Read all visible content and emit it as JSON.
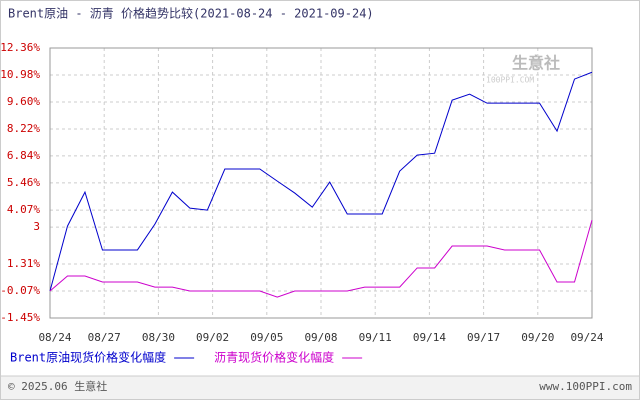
{
  "chart_data": {
    "type": "line",
    "title": "Brent原油 - 沥青 价格趋势比较(2021-08-24 - 2021-09-24)",
    "xlabels": [
      "08/24",
      "08/27",
      "08/30",
      "09/02",
      "09/05",
      "09/08",
      "09/11",
      "09/14",
      "09/17",
      "09/20",
      "09/24"
    ],
    "ylim": [
      -1.45,
      12.36
    ],
    "yticks": [
      {
        "value": 12.36,
        "label": "12.36%"
      },
      {
        "value": 10.98,
        "label": "10.98%"
      },
      {
        "value": 9.6,
        "label": "9.60%"
      },
      {
        "value": 8.22,
        "label": "8.22%"
      },
      {
        "value": 6.84,
        "label": "6.84%"
      },
      {
        "value": 5.46,
        "label": "5.46%"
      },
      {
        "value": 4.07,
        "label": "4.07%"
      },
      {
        "value": 3.2,
        "label": "3"
      },
      {
        "value": 1.31,
        "label": "1.31%"
      },
      {
        "value": -0.07,
        "label": "-0.07%"
      },
      {
        "value": -1.45,
        "label": "-1.45%"
      }
    ],
    "grid": true,
    "series": [
      {
        "name": "Brent原油现货价格变化幅度",
        "color": "#0000cc",
        "values": [
          -0.07,
          3.25,
          4.99,
          2.03,
          2.03,
          2.03,
          3.35,
          4.99,
          4.17,
          4.07,
          6.17,
          6.17,
          6.17,
          5.55,
          4.94,
          4.22,
          5.5,
          3.87,
          3.87,
          3.87,
          6.06,
          6.88,
          6.98,
          9.69,
          10.0,
          9.54,
          9.54,
          9.54,
          9.54,
          8.11,
          10.77,
          11.12
        ]
      },
      {
        "name": "沥青现货价格变化幅度",
        "color": "#cc00cc",
        "values": [
          -0.07,
          0.7,
          0.7,
          0.39,
          0.39,
          0.39,
          0.13,
          0.13,
          -0.07,
          -0.07,
          -0.07,
          -0.07,
          -0.07,
          -0.38,
          -0.07,
          -0.07,
          -0.07,
          -0.07,
          0.13,
          0.13,
          0.13,
          1.11,
          1.11,
          2.23,
          2.23,
          2.23,
          2.03,
          2.03,
          2.03,
          0.39,
          0.39,
          3.56
        ]
      }
    ]
  },
  "logo": {
    "name": "生意社",
    "site": "100PPI.COM"
  },
  "footer": {
    "copyright": "© 2025.06 生意社",
    "url": "www.100PPI.com"
  }
}
